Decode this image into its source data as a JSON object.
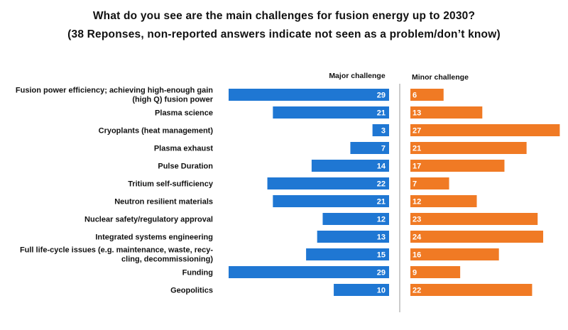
{
  "chart_data": {
    "type": "bar",
    "title": "What do you see are the main challenges for fusion energy up to 2030?",
    "subtitle": "(38 Reponses, non-reported answers indicate not seen as a problem/don’t know)",
    "categories": [
      "Fusion power efficiency; achieving high-enough gain (high Q) fusion power",
      "Plasma science",
      "Cryoplants (heat management)",
      "Plasma exhaust",
      "Pulse Duration",
      "Tritium self-sufficiency",
      "Neutron resilient materials",
      "Nuclear safety/regulatory approval",
      "Integrated systems engineering",
      "Full life-cycle issues (e.g. maintenance, waste, recy-cling, decommissioning)",
      "Funding",
      "Geopolitics"
    ],
    "category_lines": [
      [
        "Fusion power efficiency; achieving high-enough gain",
        "(high Q) fusion power"
      ],
      [
        "Plasma science"
      ],
      [
        "Cryoplants (heat management)"
      ],
      [
        "Plasma exhaust"
      ],
      [
        "Pulse Duration"
      ],
      [
        "Tritium self-sufficiency"
      ],
      [
        "Neutron resilient materials"
      ],
      [
        "Nuclear safety/regulatory approval"
      ],
      [
        "Integrated systems engineering"
      ],
      [
        "Full life-cycle issues (e.g. maintenance, waste, recy-",
        "cling, decommissioning)"
      ],
      [
        "Funding"
      ],
      [
        "Geopolitics"
      ]
    ],
    "series": [
      {
        "name": "Major challenge",
        "color": "#1f77d3",
        "direction": "left",
        "values": [
          29,
          21,
          3,
          7,
          14,
          22,
          21,
          12,
          13,
          15,
          29,
          10
        ]
      },
      {
        "name": "Minor challenge",
        "color": "#f07a24",
        "direction": "right",
        "values": [
          6,
          13,
          27,
          21,
          17,
          7,
          12,
          23,
          24,
          16,
          9,
          22
        ]
      }
    ],
    "xlim": [
      0,
      29
    ]
  }
}
